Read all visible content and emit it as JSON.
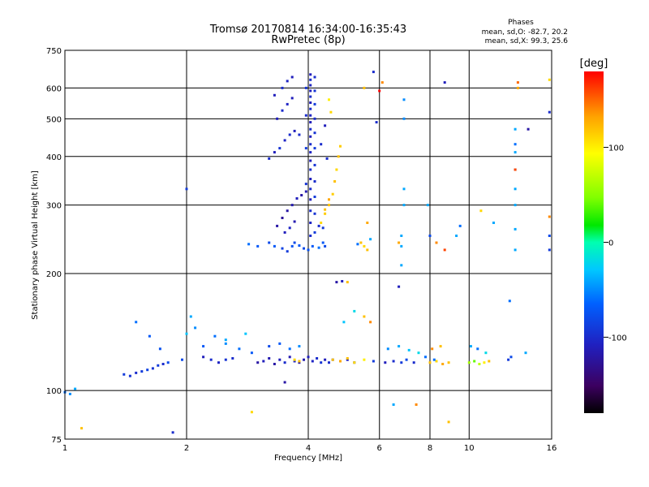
{
  "title_line1": "Tromsø 20170814 16:34:00-16:35:43",
  "title_line2": "RwPretec (8p)",
  "phases": {
    "heading": "Phases",
    "line1": "mean, sd,O: -82.7, 20.2",
    "line2": "mean, sd,X: 99.3, 25.6"
  },
  "colorbar": {
    "unit": "[deg]",
    "ticks": [
      {
        "value": 100,
        "label": "100"
      },
      {
        "value": 0,
        "label": "0"
      },
      {
        "value": -100,
        "label": "-100"
      }
    ],
    "range": [
      -180,
      180
    ]
  },
  "chart_data": {
    "type": "scatter",
    "xlabel": "Frequency [MHz]",
    "ylabel": "Stationary phase Virtual Height [km]",
    "x_scale": "log",
    "y_scale": "log",
    "xlim": [
      1,
      16
    ],
    "ylim": [
      75,
      750
    ],
    "xticks": [
      {
        "value": 1,
        "label": "1"
      },
      {
        "value": 2,
        "label": "2"
      },
      {
        "value": 4,
        "label": "4"
      },
      {
        "value": 6,
        "label": "6"
      },
      {
        "value": 8,
        "label": "8"
      },
      {
        "value": 10,
        "label": "10"
      },
      {
        "value": 16,
        "label": "16"
      }
    ],
    "yticks": [
      {
        "value": 75,
        "label": "75"
      },
      {
        "value": 100,
        "label": "100"
      },
      {
        "value": 200,
        "label": "200"
      },
      {
        "value": 300,
        "label": "300"
      },
      {
        "value": 400,
        "label": "400"
      },
      {
        "value": 500,
        "label": "500"
      },
      {
        "value": 600,
        "label": "600"
      },
      {
        "value": 750,
        "label": "750"
      }
    ],
    "grid": true,
    "color_encodes": "phase [deg]",
    "points": [
      [
        1.0,
        99,
        -60
      ],
      [
        1.03,
        98,
        -50
      ],
      [
        1.06,
        101,
        -40
      ],
      [
        1.1,
        80,
        120
      ],
      [
        1.4,
        110,
        -90
      ],
      [
        1.45,
        109,
        -95
      ],
      [
        1.5,
        111,
        -100
      ],
      [
        1.55,
        112,
        -90
      ],
      [
        1.6,
        113,
        -85
      ],
      [
        1.65,
        114,
        -95
      ],
      [
        1.7,
        116,
        -90
      ],
      [
        1.75,
        117,
        -100
      ],
      [
        1.8,
        118,
        -80
      ],
      [
        1.5,
        150,
        -60
      ],
      [
        1.62,
        138,
        -70
      ],
      [
        1.72,
        128,
        -75
      ],
      [
        1.85,
        78,
        -100
      ],
      [
        1.95,
        120,
        -80
      ],
      [
        2.0,
        140,
        -30
      ],
      [
        2.05,
        155,
        -40
      ],
      [
        2.1,
        145,
        -50
      ],
      [
        2.0,
        330,
        -90
      ],
      [
        2.2,
        122,
        -110
      ],
      [
        2.3,
        120,
        -100
      ],
      [
        2.4,
        118,
        -105
      ],
      [
        2.5,
        120,
        -95
      ],
      [
        2.6,
        121,
        -100
      ],
      [
        2.2,
        130,
        -70
      ],
      [
        2.35,
        138,
        -60
      ],
      [
        2.5,
        132,
        -50
      ],
      [
        2.7,
        128,
        -60
      ],
      [
        2.9,
        125,
        -70
      ],
      [
        2.5,
        135,
        -40
      ],
      [
        2.8,
        140,
        -30
      ],
      [
        2.9,
        88,
        110
      ],
      [
        3.0,
        118,
        -120
      ],
      [
        3.1,
        119,
        -110
      ],
      [
        3.2,
        121,
        -115
      ],
      [
        3.3,
        117,
        -120
      ],
      [
        3.4,
        120,
        -110
      ],
      [
        3.5,
        118,
        -100
      ],
      [
        3.6,
        122,
        -115
      ],
      [
        3.7,
        119,
        -105
      ],
      [
        3.2,
        130,
        -80
      ],
      [
        3.4,
        132,
        -70
      ],
      [
        3.6,
        128,
        -60
      ],
      [
        3.8,
        130,
        -50
      ],
      [
        3.5,
        105,
        -120
      ],
      [
        3.8,
        118,
        -120
      ],
      [
        3.9,
        120,
        -115
      ],
      [
        4.0,
        122,
        -110
      ],
      [
        4.1,
        119,
        -105
      ],
      [
        4.2,
        121,
        -100
      ],
      [
        4.3,
        118,
        -95
      ],
      [
        3.7,
        120,
        110
      ],
      [
        3.8,
        119,
        120
      ],
      [
        4.4,
        120,
        -110
      ],
      [
        4.5,
        118,
        -100
      ],
      [
        4.6,
        120,
        -90
      ],
      [
        4.8,
        119,
        -100
      ],
      [
        5.0,
        120,
        -110
      ],
      [
        5.2,
        118,
        -100
      ],
      [
        4.6,
        120,
        120
      ],
      [
        4.8,
        119,
        130
      ],
      [
        5.0,
        121,
        120
      ],
      [
        5.2,
        118,
        110
      ],
      [
        5.5,
        120,
        100
      ],
      [
        5.8,
        119,
        -90
      ],
      [
        4.9,
        150,
        -30
      ],
      [
        5.2,
        160,
        -20
      ],
      [
        5.5,
        155,
        120
      ],
      [
        5.7,
        150,
        140
      ],
      [
        4.7,
        190,
        -120
      ],
      [
        4.85,
        191,
        -110
      ],
      [
        5.0,
        190,
        120
      ],
      [
        6.2,
        118,
        -110
      ],
      [
        6.5,
        119,
        -100
      ],
      [
        6.8,
        118,
        -90
      ],
      [
        7.0,
        120,
        -80
      ],
      [
        7.3,
        118,
        -100
      ],
      [
        6.3,
        128,
        -50
      ],
      [
        6.7,
        130,
        -40
      ],
      [
        7.1,
        127,
        -30
      ],
      [
        7.5,
        125,
        -20
      ],
      [
        7.8,
        122,
        -60
      ],
      [
        6.5,
        92,
        -40
      ],
      [
        7.4,
        92,
        140
      ],
      [
        6.7,
        185,
        -110
      ],
      [
        8.0,
        118,
        120
      ],
      [
        8.3,
        119,
        110
      ],
      [
        8.6,
        117,
        130
      ],
      [
        8.9,
        118,
        120
      ],
      [
        8.1,
        128,
        140
      ],
      [
        8.5,
        130,
        120
      ],
      [
        8.2,
        120,
        -60
      ],
      [
        8.9,
        83,
        120
      ],
      [
        8.3,
        240,
        140
      ],
      [
        8.7,
        230,
        160
      ],
      [
        8.7,
        620,
        -110
      ],
      [
        10.0,
        118,
        60
      ],
      [
        10.3,
        119,
        40
      ],
      [
        10.6,
        117,
        70
      ],
      [
        10.9,
        118,
        100
      ],
      [
        11.2,
        119,
        120
      ],
      [
        10.1,
        130,
        -40
      ],
      [
        10.5,
        128,
        -60
      ],
      [
        11.0,
        125,
        -20
      ],
      [
        12.5,
        120,
        -90
      ],
      [
        12.7,
        122,
        -80
      ],
      [
        13.8,
        125,
        -40
      ],
      [
        12.6,
        170,
        -60
      ],
      [
        3.2,
        240,
        -80
      ],
      [
        3.3,
        235,
        -70
      ],
      [
        3.45,
        232,
        -85
      ],
      [
        3.55,
        228,
        -90
      ],
      [
        3.65,
        235,
        -75
      ],
      [
        3.7,
        240,
        -80
      ],
      [
        3.8,
        236,
        -70
      ],
      [
        3.9,
        232,
        -80
      ],
      [
        4.0,
        230,
        -75
      ],
      [
        4.1,
        235,
        -70
      ],
      [
        4.25,
        233,
        -60
      ],
      [
        4.35,
        240,
        -70
      ],
      [
        4.4,
        235,
        -80
      ],
      [
        3.0,
        235,
        -70
      ],
      [
        2.85,
        238,
        -60
      ],
      [
        3.35,
        265,
        -120
      ],
      [
        3.45,
        278,
        -125
      ],
      [
        3.55,
        290,
        -120
      ],
      [
        3.65,
        300,
        -115
      ],
      [
        3.75,
        312,
        -110
      ],
      [
        3.85,
        318,
        -120
      ],
      [
        3.95,
        325,
        -115
      ],
      [
        3.5,
        255,
        -110
      ],
      [
        3.6,
        262,
        -105
      ],
      [
        3.7,
        272,
        -115
      ],
      [
        3.2,
        395,
        -100
      ],
      [
        3.3,
        410,
        -110
      ],
      [
        3.4,
        420,
        -95
      ],
      [
        3.5,
        440,
        -105
      ],
      [
        3.6,
        455,
        -100
      ],
      [
        3.7,
        465,
        -110
      ],
      [
        3.8,
        455,
        -100
      ],
      [
        3.35,
        500,
        -110
      ],
      [
        3.45,
        525,
        -100
      ],
      [
        3.55,
        545,
        -105
      ],
      [
        3.65,
        565,
        -110
      ],
      [
        3.3,
        575,
        -110
      ],
      [
        3.45,
        600,
        -100
      ],
      [
        3.55,
        625,
        -105
      ],
      [
        3.65,
        640,
        -110
      ],
      [
        4.05,
        250,
        -100
      ],
      [
        4.05,
        270,
        -105
      ],
      [
        4.05,
        290,
        -100
      ],
      [
        4.05,
        310,
        -110
      ],
      [
        4.05,
        330,
        -100
      ],
      [
        4.05,
        350,
        -110
      ],
      [
        4.05,
        370,
        -100
      ],
      [
        4.05,
        390,
        -110
      ],
      [
        4.05,
        410,
        -105
      ],
      [
        4.05,
        430,
        -100
      ],
      [
        4.05,
        450,
        -110
      ],
      [
        4.05,
        470,
        -100
      ],
      [
        4.05,
        490,
        -110
      ],
      [
        4.05,
        510,
        -105
      ],
      [
        4.05,
        530,
        -100
      ],
      [
        4.05,
        550,
        -110
      ],
      [
        4.05,
        570,
        -100
      ],
      [
        4.05,
        590,
        -110
      ],
      [
        4.05,
        610,
        -105
      ],
      [
        4.05,
        630,
        -100
      ],
      [
        4.05,
        650,
        -110
      ],
      [
        4.15,
        255,
        -90
      ],
      [
        4.15,
        285,
        -95
      ],
      [
        4.15,
        315,
        -90
      ],
      [
        4.15,
        345,
        -100
      ],
      [
        4.15,
        380,
        -95
      ],
      [
        4.15,
        420,
        -90
      ],
      [
        4.15,
        460,
        -95
      ],
      [
        4.15,
        500,
        -100
      ],
      [
        4.15,
        545,
        -90
      ],
      [
        4.15,
        590,
        -95
      ],
      [
        4.15,
        640,
        -100
      ],
      [
        3.95,
        340,
        -95
      ],
      [
        3.95,
        420,
        -90
      ],
      [
        3.95,
        510,
        -100
      ],
      [
        3.95,
        600,
        -95
      ],
      [
        4.3,
        270,
        110
      ],
      [
        4.4,
        285,
        115
      ],
      [
        4.5,
        300,
        120
      ],
      [
        4.6,
        320,
        115
      ],
      [
        4.65,
        345,
        120
      ],
      [
        4.7,
        370,
        110
      ],
      [
        4.75,
        400,
        120
      ],
      [
        4.8,
        425,
        115
      ],
      [
        4.5,
        310,
        130
      ],
      [
        4.4,
        292,
        120
      ],
      [
        4.25,
        265,
        -100
      ],
      [
        4.35,
        262,
        -90
      ],
      [
        4.45,
        395,
        -100
      ],
      [
        4.55,
        520,
        110
      ],
      [
        4.5,
        560,
        100
      ],
      [
        4.4,
        480,
        -110
      ],
      [
        4.3,
        430,
        -100
      ],
      [
        5.4,
        240,
        120
      ],
      [
        5.5,
        235,
        110
      ],
      [
        5.6,
        230,
        120
      ],
      [
        5.3,
        238,
        -60
      ],
      [
        5.7,
        245,
        -40
      ],
      [
        5.6,
        270,
        130
      ],
      [
        5.9,
        490,
        -100
      ],
      [
        6.1,
        620,
        140
      ],
      [
        5.8,
        660,
        -100
      ],
      [
        5.5,
        600,
        120
      ],
      [
        6.0,
        590,
        180
      ],
      [
        6.7,
        240,
        130
      ],
      [
        6.8,
        235,
        -40
      ],
      [
        6.9,
        300,
        -40
      ],
      [
        6.9,
        330,
        -40
      ],
      [
        6.9,
        500,
        -50
      ],
      [
        6.9,
        560,
        -50
      ],
      [
        6.8,
        250,
        -40
      ],
      [
        6.8,
        210,
        -40
      ],
      [
        7.9,
        300,
        -40
      ],
      [
        8.0,
        250,
        -80
      ],
      [
        9.3,
        250,
        -40
      ],
      [
        9.5,
        265,
        -60
      ],
      [
        10.7,
        290,
        110
      ],
      [
        11.5,
        270,
        -40
      ],
      [
        13.0,
        430,
        -60
      ],
      [
        13.0,
        230,
        -40
      ],
      [
        13.0,
        260,
        -40
      ],
      [
        13.0,
        300,
        -40
      ],
      [
        13.0,
        330,
        -40
      ],
      [
        13.0,
        370,
        -40
      ],
      [
        13.0,
        410,
        -40
      ],
      [
        13.0,
        470,
        -40
      ],
      [
        14.0,
        470,
        -120
      ],
      [
        15.8,
        230,
        -90
      ],
      [
        15.8,
        250,
        -80
      ],
      [
        15.8,
        280,
        140
      ],
      [
        15.8,
        520,
        -100
      ],
      [
        15.8,
        630,
        110
      ],
      [
        13.2,
        600,
        130
      ],
      [
        13.2,
        620,
        150
      ],
      [
        13.0,
        370,
        160
      ]
    ]
  }
}
